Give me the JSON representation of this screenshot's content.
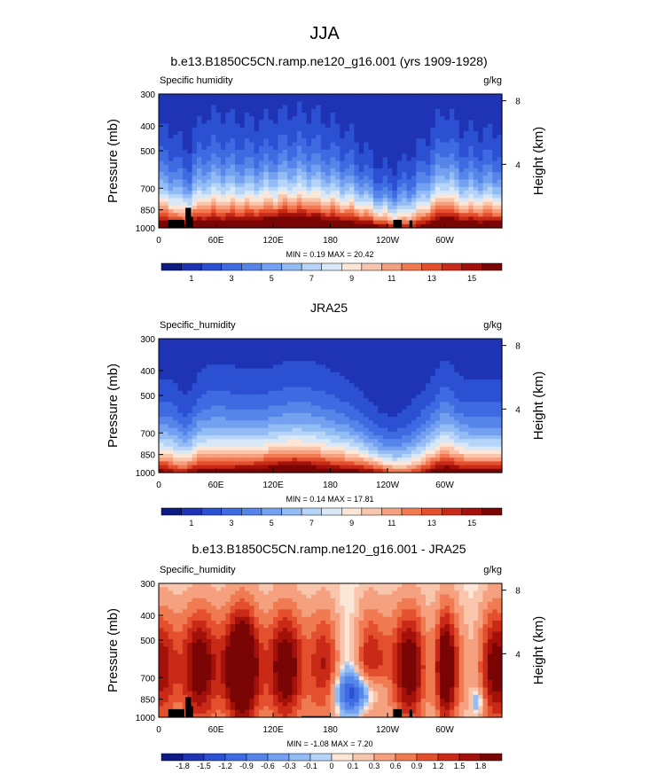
{
  "figure": {
    "title": "JJA"
  },
  "chart_data": [
    {
      "type": "heatmap",
      "title": "b.e13.B1850C5CN.ramp.ne120_g16.001 (yrs 1909-1928)",
      "left_label": "Specific humidity",
      "units": "g/kg",
      "ylabel": "Pressure (mb)",
      "ylabel_right": "Height (km)",
      "stats": "MIN =  0.19  MAX = 20.42",
      "x_ticks": [
        "0",
        "60E",
        "120E",
        "180",
        "120W",
        "60W"
      ],
      "x_tick_values": [
        0,
        60,
        120,
        180,
        240,
        300
      ],
      "xlim": [
        0,
        360
      ],
      "y_ticks": [
        "300",
        "400",
        "500",
        "700",
        "850",
        "1000"
      ],
      "y_tick_values": [
        300,
        400,
        500,
        700,
        850,
        1000
      ],
      "ylim": [
        1000,
        300
      ],
      "y_scale": "log",
      "height_ticks": [
        "8",
        "4"
      ],
      "height_tick_values": [
        8,
        4
      ],
      "colorbar_labels": [
        "1",
        "3",
        "5",
        "7",
        "9",
        "11",
        "13",
        "15"
      ],
      "levels": [
        0,
        1,
        2,
        3,
        4,
        5,
        6,
        7,
        8,
        9,
        10,
        11,
        12,
        13,
        14,
        15
      ],
      "variant": "model"
    },
    {
      "type": "heatmap",
      "title": "JRA25",
      "left_label": "Specific_humidity",
      "units": "g/kg",
      "ylabel": "Pressure (mb)",
      "ylabel_right": "Height (km)",
      "stats": "MIN =  0.14  MAX = 17.81",
      "x_ticks": [
        "0",
        "60E",
        "120E",
        "180",
        "120W",
        "60W"
      ],
      "x_tick_values": [
        0,
        60,
        120,
        180,
        240,
        300
      ],
      "xlim": [
        0,
        360
      ],
      "y_ticks": [
        "300",
        "400",
        "500",
        "700",
        "850",
        "1000"
      ],
      "y_tick_values": [
        300,
        400,
        500,
        700,
        850,
        1000
      ],
      "ylim": [
        1000,
        300
      ],
      "y_scale": "log",
      "height_ticks": [
        "8",
        "4"
      ],
      "height_tick_values": [
        8,
        4
      ],
      "colorbar_labels": [
        "1",
        "3",
        "5",
        "7",
        "9",
        "11",
        "13",
        "15"
      ],
      "levels": [
        0,
        1,
        2,
        3,
        4,
        5,
        6,
        7,
        8,
        9,
        10,
        11,
        12,
        13,
        14,
        15
      ],
      "variant": "obs"
    },
    {
      "type": "heatmap",
      "title": "b.e13.B1850C5CN.ramp.ne120_g16.001 - JRA25",
      "left_label": "Specific_humidity",
      "units": "g/kg",
      "ylabel": "Pressure (mb)",
      "ylabel_right": "Height (km)",
      "stats": "MIN = -1.08  MAX =  7.20",
      "x_ticks": [
        "0",
        "60E",
        "120E",
        "180",
        "120W",
        "60W"
      ],
      "x_tick_values": [
        0,
        60,
        120,
        180,
        240,
        300
      ],
      "xlim": [
        0,
        360
      ],
      "y_ticks": [
        "300",
        "400",
        "500",
        "700",
        "850",
        "1000"
      ],
      "y_tick_values": [
        300,
        400,
        500,
        700,
        850,
        1000
      ],
      "ylim": [
        1000,
        300
      ],
      "y_scale": "log",
      "height_ticks": [
        "8",
        "4"
      ],
      "height_tick_values": [
        8,
        4
      ],
      "colorbar_labels": [
        "-1.8",
        "-1.5",
        "-1.2",
        "-0.9",
        "-0.6",
        "-0.3",
        "-0.1",
        "0",
        "0.1",
        "0.3",
        "0.6",
        "0.9",
        "1.2",
        "1.5",
        "1.8"
      ],
      "levels": [
        -1.8,
        -1.5,
        -1.2,
        -0.9,
        -0.6,
        -0.3,
        -0.1,
        0,
        0.1,
        0.3,
        0.6,
        0.9,
        1.2,
        1.5,
        1.8
      ],
      "variant": "diff"
    }
  ],
  "colormap": [
    "#0c1b84",
    "#1f34b4",
    "#2c50d2",
    "#3e6ae2",
    "#5685ea",
    "#73a0f0",
    "#93bcf5",
    "#b6d4f8",
    "#d8e8f7",
    "#fbe6d8",
    "#f8c5ad",
    "#f5a07e",
    "#f07a52",
    "#e4502e",
    "#c92a17",
    "#a3110a",
    "#7a0505"
  ],
  "terrain_color": "#000000"
}
